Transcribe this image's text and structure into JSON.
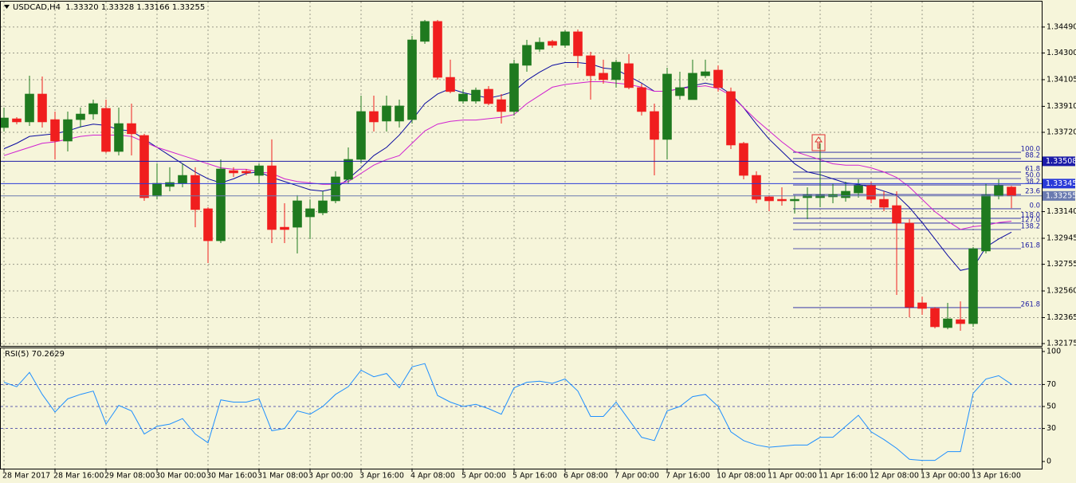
{
  "chart_data": [
    {
      "type": "candlestick",
      "title": "USDCAD,H4  1.33320 1.33328 1.33166 1.33255",
      "categories": [
        "28 Mar 2017",
        null,
        null,
        null,
        "28 Mar 16:00",
        null,
        null,
        null,
        "29 Mar 08:00",
        null,
        null,
        null,
        "30 Mar 00:00",
        null,
        null,
        null,
        "30 Mar 16:00",
        null,
        null,
        null,
        "31 Mar 08:00",
        null,
        null,
        null,
        "3 Apr 00:00",
        null,
        null,
        null,
        "3 Apr 16:00",
        null,
        null,
        null,
        "4 Apr 08:00",
        null,
        null,
        null,
        "5 Apr 00:00",
        null,
        null,
        null,
        "5 Apr 16:00",
        null,
        null,
        null,
        "6 Apr 08:00",
        null,
        null,
        null,
        "7 Apr 00:00",
        null,
        null,
        null,
        "7 Apr 16:00",
        null,
        null,
        null,
        "10 Apr 08:00",
        null,
        null,
        null,
        "11 Apr 00:00",
        null,
        null,
        null,
        "11 Apr 16:00",
        null,
        null,
        null,
        "12 Apr 08:00",
        null,
        null,
        null,
        "13 Apr 00:00",
        null,
        null,
        null,
        "13 Apr 16:00",
        null,
        null,
        null
      ],
      "open": [
        1.33755,
        1.33819,
        1.33796,
        1.34,
        1.33813,
        1.33656,
        1.33813,
        1.33854,
        1.33895,
        1.3358,
        1.33784,
        1.33697,
        1.33254,
        1.33324,
        1.33347,
        1.33405,
        1.33161,
        1.32927,
        1.3344,
        1.33435,
        1.33405,
        1.33475,
        1.33026,
        1.33026,
        1.33102,
        1.33131,
        1.33219,
        1.33376,
        1.33522,
        1.33872,
        1.33802,
        1.33802,
        1.33813,
        1.34385,
        1.34531,
        1.34122,
        1.33948,
        1.33948,
        1.34035,
        1.33959,
        1.33872,
        1.3421,
        1.34327,
        1.34385,
        1.34356,
        1.34455,
        1.3428,
        1.34152,
        1.34105,
        1.34222,
        1.34047,
        1.33872,
        1.33668,
        1.33988,
        1.33959,
        1.34134,
        1.34175,
        1.34018,
        1.33639,
        1.33405,
        1.33248,
        1.3323,
        1.33219,
        1.33242,
        1.33242,
        1.33248,
        1.33242,
        1.33277,
        1.3333,
        1.3323,
        1.33184,
        1.33056,
        1.32473,
        1.32432,
        1.32292,
        1.3235,
        1.32321,
        1.32852,
        1.33254,
        1.3332
      ],
      "high": [
        1.33901,
        1.33831,
        1.34134,
        1.34128,
        1.33872,
        1.33872,
        1.33901,
        1.33959,
        1.33959,
        1.33901,
        1.3393,
        1.33709,
        1.33493,
        1.33464,
        1.33493,
        1.33464,
        1.33172,
        1.33522,
        1.33464,
        1.33452,
        1.33493,
        1.33668,
        1.33201,
        1.3326,
        1.3323,
        1.33289,
        1.33435,
        1.33609,
        1.33988,
        1.33988,
        1.33988,
        1.33959,
        1.34426,
        1.34542,
        1.34542,
        1.34251,
        1.34035,
        1.34047,
        1.34058,
        1.34,
        1.34251,
        1.34396,
        1.34414,
        1.34396,
        1.34466,
        1.34472,
        1.34309,
        1.34251,
        1.34251,
        1.34292,
        1.34076,
        1.3393,
        1.34192,
        1.34163,
        1.34251,
        1.34251,
        1.3421,
        1.34047,
        1.3365,
        1.33435,
        1.3326,
        1.33318,
        1.3326,
        1.33318,
        1.33639,
        1.33347,
        1.33359,
        1.33376,
        1.33359,
        1.33289,
        1.33289,
        1.33085,
        1.32519,
        1.32442,
        1.32473,
        1.32484,
        1.32881,
        1.33347,
        1.33376,
        1.33328
      ],
      "low": [
        1.33726,
        1.33779,
        1.33767,
        1.33755,
        1.33522,
        1.3358,
        1.33755,
        1.33813,
        1.33569,
        1.33551,
        1.33551,
        1.33219,
        1.3323,
        1.33289,
        1.33318,
        1.33026,
        1.32764,
        1.3291,
        1.33394,
        1.33405,
        1.33347,
        1.3291,
        1.3291,
        1.32834,
        1.32939,
        1.33114,
        1.33201,
        1.33347,
        1.33493,
        1.33726,
        1.33726,
        1.33755,
        1.33784,
        1.34367,
        1.34105,
        1.34006,
        1.3393,
        1.3393,
        1.33918,
        1.33784,
        1.33843,
        1.34163,
        1.34309,
        1.34338,
        1.34338,
        1.34192,
        1.33959,
        1.34076,
        1.34047,
        1.34035,
        1.33843,
        1.33405,
        1.33522,
        1.33959,
        1.33959,
        1.34117,
        1.34018,
        1.33598,
        1.33376,
        1.33201,
        1.33143,
        1.33184,
        1.33126,
        1.33085,
        1.33172,
        1.33201,
        1.33213,
        1.33242,
        1.33201,
        1.33143,
        1.32531,
        1.32368,
        1.32385,
        1.32286,
        1.3228,
        1.32269,
        1.32298,
        1.32834,
        1.3323,
        1.33166
      ],
      "close": [
        1.33825,
        1.33796,
        1.34,
        1.33796,
        1.33656,
        1.33813,
        1.33854,
        1.3393,
        1.3358,
        1.33784,
        1.33709,
        1.33242,
        1.33347,
        1.33353,
        1.33405,
        1.33155,
        1.32927,
        1.33452,
        1.33423,
        1.33423,
        1.33475,
        1.33009,
        1.33009,
        1.33219,
        1.33161,
        1.33219,
        1.33394,
        1.33522,
        1.33872,
        1.33796,
        1.33913,
        1.33913,
        1.34396,
        1.34531,
        1.34122,
        1.34018,
        1.34,
        1.34029,
        1.3393,
        1.33872,
        1.34222,
        1.34356,
        1.34379,
        1.34356,
        1.34455,
        1.3428,
        1.34134,
        1.34105,
        1.34233,
        1.34047,
        1.33872,
        1.33668,
        1.34146,
        1.34047,
        1.34152,
        1.34163,
        1.34047,
        1.33627,
        1.33405,
        1.3323,
        1.33219,
        1.33219,
        1.3323,
        1.3326,
        1.3326,
        1.33265,
        1.33289,
        1.3333,
        1.3323,
        1.33172,
        1.33056,
        1.32442,
        1.32432,
        1.32298,
        1.32356,
        1.32321,
        1.32869,
        1.3326,
        1.3333,
        1.33255
      ],
      "up_color": "#1f7a1f",
      "down_color": "#f01e1e",
      "series": [
        {
          "color": "#0a0aa0",
          "values": [
            1.336,
            1.3364,
            1.3369,
            1.337,
            1.3371,
            1.3373,
            1.3376,
            1.3378,
            1.3377,
            1.3374,
            1.3373,
            1.3367,
            1.3361,
            1.3355,
            1.3349,
            1.3343,
            1.3338,
            1.3335,
            1.3338,
            1.3342,
            1.3343,
            1.3339,
            1.3336,
            1.3333,
            1.333,
            1.3329,
            1.3331,
            1.3338,
            1.3346,
            1.3355,
            1.3361,
            1.337,
            1.3381,
            1.3393,
            1.34,
            1.3404,
            1.3401,
            1.3399,
            1.3397,
            1.3399,
            1.3402,
            1.341,
            1.3416,
            1.3421,
            1.3423,
            1.3423,
            1.3422,
            1.3419,
            1.3418,
            1.3413,
            1.3408,
            1.3402,
            1.3402,
            1.3404,
            1.3406,
            1.3408,
            1.3406,
            1.34,
            1.339,
            1.3378,
            1.3367,
            1.3358,
            1.3349,
            1.3343,
            1.3341,
            1.3338,
            1.3335,
            1.3334,
            1.3332,
            1.3329,
            1.3326,
            1.3317,
            1.3306,
            1.3294,
            1.3282,
            1.3271,
            1.3273,
            1.3288,
            1.3294,
            1.3299
          ]
        },
        {
          "color": "#d020d0",
          "values": [
            1.3355,
            1.3358,
            1.3361,
            1.3364,
            1.3365,
            1.3367,
            1.3369,
            1.337,
            1.337,
            1.337,
            1.3369,
            1.3365,
            1.3361,
            1.3358,
            1.3355,
            1.3352,
            1.3349,
            1.3346,
            1.3345,
            1.3345,
            1.3343,
            1.3342,
            1.3338,
            1.3336,
            1.3335,
            1.3334,
            1.3334,
            1.3336,
            1.3342,
            1.3348,
            1.3352,
            1.3355,
            1.3364,
            1.3373,
            1.3378,
            1.338,
            1.3381,
            1.3381,
            1.3382,
            1.3383,
            1.3385,
            1.3393,
            1.3399,
            1.3405,
            1.3407,
            1.3408,
            1.3409,
            1.3409,
            1.3408,
            1.3407,
            1.3405,
            1.3402,
            1.3402,
            1.3404,
            1.3405,
            1.3406,
            1.3404,
            1.3399,
            1.339,
            1.3381,
            1.3373,
            1.3365,
            1.3358,
            1.3355,
            1.3352,
            1.3349,
            1.3348,
            1.3348,
            1.3346,
            1.3343,
            1.3339,
            1.3332,
            1.3323,
            1.3314,
            1.3307,
            1.3301,
            1.3303,
            1.3304,
            1.3306,
            1.3307
          ]
        }
      ],
      "ylim": [
        1.32158,
        1.34676
      ],
      "yticks": [
        {
          "value": 1.3449,
          "label": "1.34490"
        },
        {
          "value": 1.343,
          "label": "1.34300"
        },
        1.34105,
        {
          "value": 1.3391,
          "label": "1.33910"
        },
        {
          "value": 1.3372,
          "label": "1.33720"
        },
        {
          "value": 1.3314,
          "label": "1.33140"
        },
        1.32945,
        1.32755,
        {
          "value": 1.3256,
          "label": "1.32560"
        },
        1.32365,
        {
          "value": 1.32175,
          "label": "1.32175"
        }
      ],
      "grid": true,
      "price_lines": [
        {
          "value": 1.33508,
          "color": "#1c1ca8"
        },
        {
          "value": 1.33345,
          "color": "#2a3ad8"
        },
        {
          "value": 1.33255,
          "color": "#6a7ab0"
        }
      ],
      "fibonacci": {
        "color": "#1a1aa0",
        "levels": [
          {
            "value": 1.33574,
            "label": "100.0"
          },
          {
            "value": 1.33528,
            "label": "88.2"
          },
          {
            "value": 1.33429,
            "label": "61.8"
          },
          {
            "value": 1.33382,
            "label": "50.0"
          },
          {
            "value": 1.33335,
            "label": "38.2"
          },
          {
            "value": 1.33265,
            "label": "23.6"
          },
          {
            "value": 1.33161,
            "label": "0.0"
          },
          {
            "value": 1.33091,
            "label": "118.0"
          },
          {
            "value": 1.33056,
            "label": "127.0"
          },
          {
            "value": 1.33009,
            "label": "138.2"
          },
          {
            "value": 1.32869,
            "label": "161.8"
          },
          {
            "value": 1.32438,
            "label": "261.8"
          }
        ]
      }
    },
    {
      "type": "line",
      "title": "RSI(5) 70.2629",
      "series": [
        {
          "color": "#1e8fff",
          "values": [
            72,
            68,
            81,
            61,
            45,
            57,
            61,
            64,
            34,
            51,
            46,
            25,
            32,
            34,
            39,
            25,
            17,
            56,
            54,
            54,
            57,
            28,
            30,
            46,
            43,
            50,
            61,
            68,
            83,
            77,
            80,
            67,
            86,
            89,
            60,
            54,
            50,
            52,
            48,
            43,
            67,
            72,
            73,
            71,
            75,
            64,
            41,
            41,
            54,
            38,
            22,
            19,
            46,
            50,
            59,
            61,
            50,
            27,
            19,
            15,
            13,
            14,
            15,
            15,
            22,
            22,
            32,
            42,
            27,
            20,
            12,
            2,
            1,
            1,
            9,
            9,
            62,
            75,
            78,
            70.2629
          ]
        }
      ],
      "ylim": [
        -6.5,
        102.9
      ],
      "yticks": [
        100,
        70,
        50,
        30,
        0
      ],
      "levels": [
        70,
        50,
        30
      ]
    }
  ]
}
